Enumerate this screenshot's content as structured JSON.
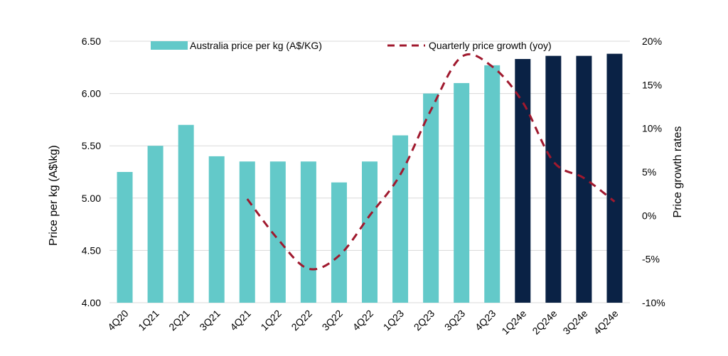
{
  "chart_data": {
    "type": "bar",
    "categories": [
      "4Q20",
      "1Q21",
      "2Q21",
      "3Q21",
      "4Q21",
      "1Q22",
      "2Q22",
      "3Q22",
      "4Q22",
      "1Q23",
      "2Q23",
      "3Q23",
      "4Q23",
      "1Q24e",
      "2Q24e",
      "3Q24e",
      "4Q24e"
    ],
    "series": [
      {
        "name": "Australia price per kg (A$/KG)",
        "type": "bar",
        "axis": "left",
        "values": [
          5.25,
          5.5,
          5.7,
          5.4,
          5.35,
          5.35,
          5.35,
          5.15,
          5.35,
          5.6,
          6.0,
          6.1,
          6.27,
          6.33,
          6.36,
          6.36,
          6.38
        ],
        "colors": [
          "#63C9C9",
          "#63C9C9",
          "#63C9C9",
          "#63C9C9",
          "#63C9C9",
          "#63C9C9",
          "#63C9C9",
          "#63C9C9",
          "#63C9C9",
          "#63C9C9",
          "#63C9C9",
          "#63C9C9",
          "#63C9C9",
          "#0A2245",
          "#0A2245",
          "#0A2245",
          "#0A2245"
        ]
      },
      {
        "name": "Quarterly price growth (yoy)",
        "type": "line",
        "axis": "right",
        "style": "dashed",
        "color": "#A0192E",
        "values": [
          null,
          null,
          null,
          null,
          1.9,
          -2.7,
          -6.1,
          -4.6,
          0.0,
          4.7,
          12.1,
          18.2,
          17.1,
          13.0,
          6.2,
          4.3,
          1.6
        ]
      }
    ],
    "ylabel": "Price per kg (A$\\kg)",
    "ylabel_right": "Price growth rates",
    "ylim": [
      4.0,
      6.5
    ],
    "ylim_right": [
      -10,
      20
    ],
    "yticks": [
      "4.00",
      "4.50",
      "5.00",
      "5.50",
      "6.00",
      "6.50"
    ],
    "yticks_right": [
      "-10%",
      "-5%",
      "0%",
      "5%",
      "10%",
      "15%",
      "20%"
    ],
    "grid": true,
    "legend_position": "top"
  }
}
